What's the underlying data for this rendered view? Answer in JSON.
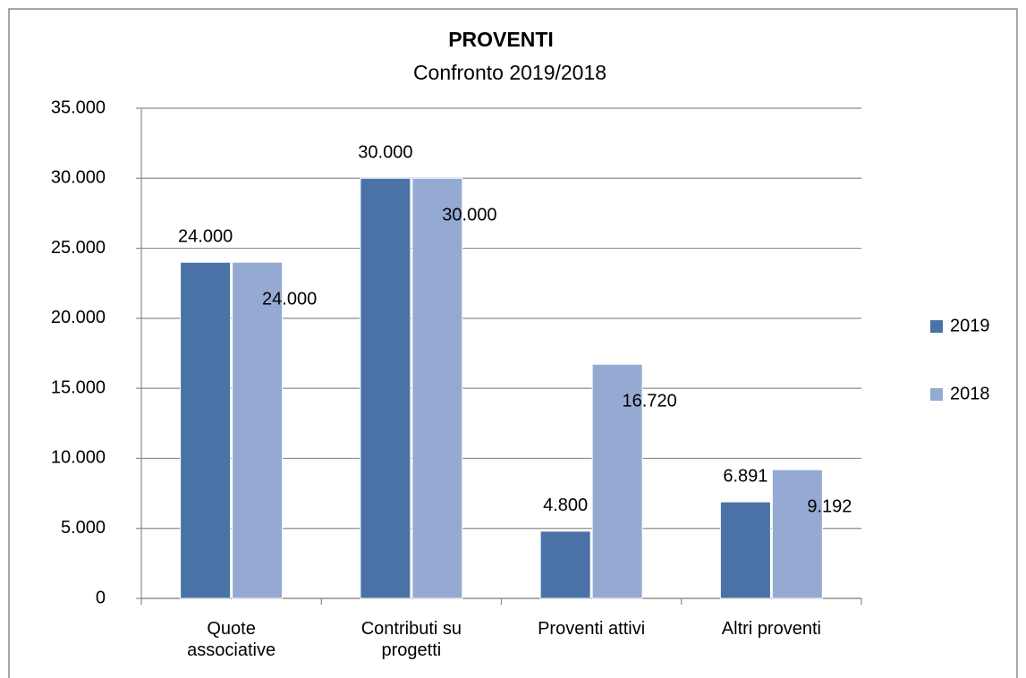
{
  "chart_data": {
    "type": "bar",
    "title": "PROVENTI",
    "subtitle": "Confronto 2019/2018",
    "categories": [
      "Quote associative",
      "Contributi su progetti",
      "Proventi attivi",
      "Altri proventi"
    ],
    "series": [
      {
        "name": "2019",
        "color": "#4a72a6",
        "values": [
          24000,
          30000,
          4800,
          6891
        ],
        "value_labels": [
          "24.000",
          "30.000",
          "4.800",
          "6.891"
        ]
      },
      {
        "name": "2018",
        "color": "#95aad3",
        "values": [
          24000,
          30000,
          16720,
          9192
        ],
        "value_labels": [
          "24.000",
          "30.000",
          "16.720",
          "9.192"
        ]
      }
    ],
    "ylim": [
      0,
      35000
    ],
    "yticks": [
      0,
      {
        "value": 5000,
        "label": "5.000"
      },
      {
        "value": 10000,
        "label": "10.000"
      },
      {
        "value": 15000,
        "label": "15.000"
      },
      {
        "value": 20000,
        "label": "20.000"
      },
      {
        "value": 25000,
        "label": "25.000"
      },
      {
        "value": 30000,
        "label": "30.000"
      },
      {
        "value": 35000,
        "label": "35.000"
      }
    ],
    "grid": true,
    "legend": "right"
  }
}
